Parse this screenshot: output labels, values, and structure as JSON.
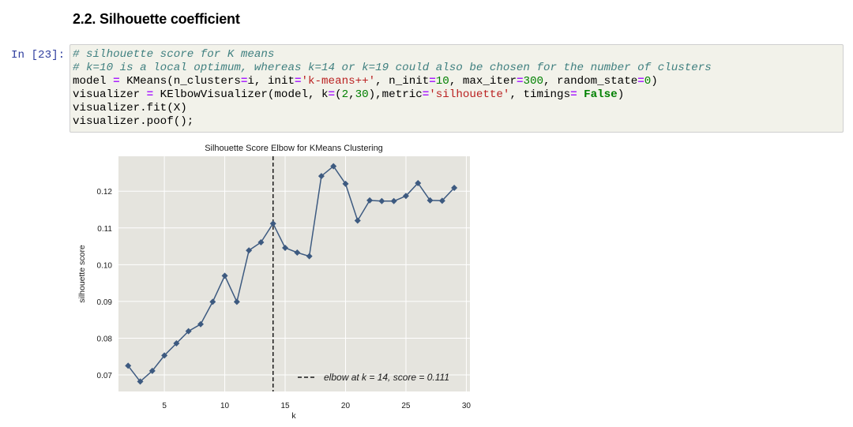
{
  "notebook": {
    "section_title": "2.2. Silhouette coefficient",
    "prompt": "In [23]:",
    "code": {
      "line1": "# silhouette score for K means",
      "line2": "# k=10 is a local optimum, whereas k=14 or k=19 could also be chosen for the number of clusters",
      "line3": {
        "p1": "model ",
        "p2": "=",
        "p3": " KMeans(n_clusters",
        "p4": "=",
        "p5": "i, init",
        "p6": "=",
        "p7": "'k-means++'",
        "p8": ", n_init",
        "p9": "=",
        "p10": "10",
        "p11": ", max_iter",
        "p12": "=",
        "p13": "300",
        "p14": ", random_state",
        "p15": "=",
        "p16": "0",
        "p17": ")"
      },
      "line4": {
        "p1": "visualizer ",
        "p2": "=",
        "p3": " KElbowVisualizer(model, k",
        "p4": "=",
        "p5": "(",
        "p6": "2",
        "p7": ",",
        "p8": "30",
        "p9": "),metric",
        "p10": "=",
        "p11": "'silhouette'",
        "p12": ", timings",
        "p13": "=",
        "p14": " ",
        "p15": "False",
        "p16": ")"
      },
      "line5": "visualizer.fit(X)",
      "line6": "visualizer.poof();"
    }
  },
  "chart_data": {
    "type": "line",
    "title": "Silhouette Score Elbow for KMeans Clustering",
    "xlabel": "k",
    "ylabel": "silhouette score",
    "x": [
      2,
      3,
      4,
      5,
      6,
      7,
      8,
      9,
      10,
      11,
      12,
      13,
      14,
      15,
      16,
      17,
      18,
      19,
      20,
      21,
      22,
      23,
      24,
      25,
      26,
      27,
      28,
      29
    ],
    "values": [
      0.0725,
      0.0682,
      0.0711,
      0.0753,
      0.0786,
      0.0819,
      0.0838,
      0.0899,
      0.097,
      0.0899,
      0.1039,
      0.1061,
      0.1112,
      0.1046,
      0.1033,
      0.1023,
      0.1241,
      0.1268,
      0.122,
      0.112,
      0.1175,
      0.1173,
      0.1173,
      0.1187,
      0.1222,
      0.1175,
      0.1174,
      0.1209
    ],
    "xlim": [
      1.2,
      30.3
    ],
    "ylim": [
      0.0655,
      0.1295
    ],
    "xticks": [
      5,
      10,
      15,
      20,
      25,
      30
    ],
    "yticks": [
      0.07,
      0.08,
      0.09,
      0.1,
      0.11,
      0.12
    ],
    "ytick_labels": [
      "0.07",
      "0.08",
      "0.09",
      "0.10",
      "0.11",
      "0.12"
    ],
    "elbow": {
      "k": 14,
      "legend_text": "elbow at k = 14, score = 0.111"
    },
    "grid": true,
    "legend_placement": "lower-right",
    "colors": {
      "line": "#3d5a80",
      "marker": "#3d5a80",
      "background": "#e5e4de",
      "grid": "#ffffff",
      "elbow": "#1a1a1a"
    }
  }
}
